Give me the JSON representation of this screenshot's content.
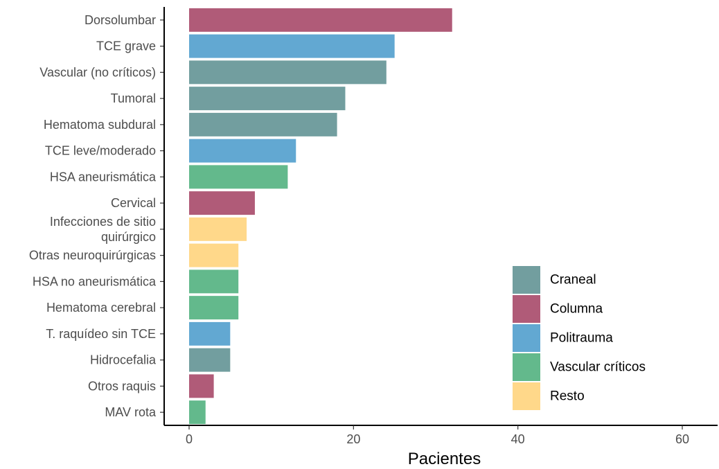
{
  "chart_data": {
    "type": "bar",
    "orientation": "horizontal",
    "title": "",
    "xlabel": "Pacientes",
    "ylabel": "",
    "xlim": [
      0,
      64
    ],
    "xticks": [
      0,
      20,
      40,
      60
    ],
    "grid": false,
    "legend_position": "bottom-right",
    "groups": [
      {
        "name": "Craneal",
        "color": "#729E9F"
      },
      {
        "name": "Columna",
        "color": "#B05B78"
      },
      {
        "name": "Politrauma",
        "color": "#62A8D2"
      },
      {
        "name": "Vascular críticos",
        "color": "#63B98C"
      },
      {
        "name": "Resto",
        "color": "#FFD88A"
      }
    ],
    "bars": [
      {
        "label": [
          "Dorsolumbar"
        ],
        "value": 32,
        "group": "Columna"
      },
      {
        "label": [
          "TCE grave"
        ],
        "value": 25,
        "group": "Politrauma"
      },
      {
        "label": [
          "Vascular (no críticos)"
        ],
        "value": 24,
        "group": "Craneal"
      },
      {
        "label": [
          "Tumoral"
        ],
        "value": 19,
        "group": "Craneal"
      },
      {
        "label": [
          "Hematoma subdural"
        ],
        "value": 18,
        "group": "Craneal"
      },
      {
        "label": [
          "TCE leve/moderado"
        ],
        "value": 13,
        "group": "Politrauma"
      },
      {
        "label": [
          "HSA aneurismática"
        ],
        "value": 12,
        "group": "Vascular críticos"
      },
      {
        "label": [
          "Cervical"
        ],
        "value": 8,
        "group": "Columna"
      },
      {
        "label": [
          "Infecciones de sitio",
          "quirúrgico"
        ],
        "value": 7,
        "group": "Resto"
      },
      {
        "label": [
          "Otras neuroquirúrgicas"
        ],
        "value": 6,
        "group": "Resto"
      },
      {
        "label": [
          "HSA no aneurismática"
        ],
        "value": 6,
        "group": "Vascular críticos"
      },
      {
        "label": [
          "Hematoma cerebral"
        ],
        "value": 6,
        "group": "Vascular críticos"
      },
      {
        "label": [
          "T. raquídeo sin TCE"
        ],
        "value": 5,
        "group": "Politrauma"
      },
      {
        "label": [
          "Hidrocefalia"
        ],
        "value": 5,
        "group": "Craneal"
      },
      {
        "label": [
          "Otros raquis"
        ],
        "value": 3,
        "group": "Columna"
      },
      {
        "label": [
          "MAV rota"
        ],
        "value": 2,
        "group": "Vascular críticos"
      }
    ]
  }
}
